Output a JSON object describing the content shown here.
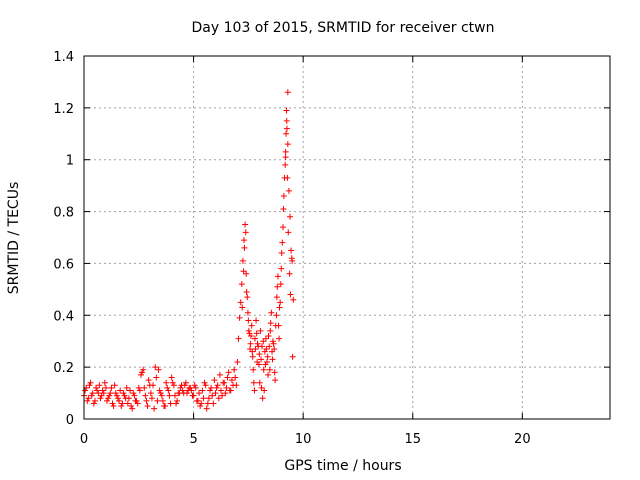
{
  "chart_data": {
    "type": "scatter",
    "title": "Day 103 of 2015, SRMTID for receiver ctwn",
    "xlabel": "GPS time / hours",
    "ylabel": "SRMTID / TECUs",
    "xlim": [
      0,
      24
    ],
    "ylim": [
      0,
      1.4
    ],
    "xticks": [
      0,
      5,
      10,
      15,
      20
    ],
    "xtick_labels": [
      "0",
      "5",
      "10",
      "15",
      "20"
    ],
    "yticks": [
      0,
      0.2,
      0.4,
      0.6,
      0.8,
      1.0,
      1.2,
      1.4
    ],
    "ytick_labels": [
      "0",
      "0.2",
      "0.4",
      "0.6",
      "0.8",
      "1",
      "1.2",
      "1.4"
    ],
    "grid": true,
    "marker": "+",
    "color": "#ff0000",
    "series": [
      {
        "name": "SRMTID",
        "x": [
          0.0,
          0.1,
          0.2,
          0.3,
          0.4,
          0.5,
          0.6,
          0.7,
          0.8,
          0.9,
          1.0,
          1.1,
          1.2,
          1.3,
          1.4,
          1.5,
          1.6,
          1.7,
          1.8,
          1.9,
          2.0,
          2.1,
          2.2,
          2.3,
          2.4,
          2.5,
          2.6,
          2.7,
          2.8,
          2.9,
          3.0,
          3.1,
          3.2,
          3.3,
          3.4,
          3.5,
          3.6,
          3.7,
          3.8,
          3.9,
          4.0,
          4.1,
          4.2,
          4.3,
          4.4,
          4.5,
          4.6,
          4.7,
          4.8,
          4.9,
          5.0,
          5.1,
          5.2,
          5.3,
          5.4,
          5.5,
          5.6,
          5.7,
          5.8,
          5.9,
          6.0,
          6.1,
          6.2,
          6.3,
          6.4,
          6.5,
          6.6,
          6.7,
          6.8,
          6.9,
          7.0,
          7.05,
          7.1,
          7.15,
          7.2,
          7.25,
          7.3,
          7.35,
          7.4,
          7.45,
          7.5,
          7.55,
          7.6,
          7.65,
          7.7,
          7.75,
          7.8,
          7.85,
          7.9,
          7.95,
          8.0,
          8.05,
          8.1,
          8.15,
          8.2,
          8.25,
          8.3,
          8.35,
          8.4,
          8.45,
          8.5,
          8.55,
          8.6,
          8.65,
          8.7,
          8.75,
          8.8,
          8.85,
          8.9,
          8.95,
          9.0,
          9.05,
          9.1,
          9.15,
          9.2,
          9.25,
          9.3,
          9.35,
          9.4,
          9.45,
          9.5,
          9.55,
          0.05,
          0.15,
          0.25,
          0.35,
          0.45,
          0.55,
          0.65,
          0.75,
          0.85,
          0.95,
          1.05,
          1.15,
          1.25,
          1.35,
          1.45,
          1.55,
          1.65,
          1.75,
          1.85,
          1.95,
          2.05,
          2.15,
          2.25,
          2.35,
          2.45,
          2.55,
          2.65,
          2.75,
          2.85,
          2.95,
          3.05,
          3.15,
          3.25,
          3.35,
          3.45,
          3.55,
          3.65,
          3.75,
          3.85,
          3.95,
          4.05,
          4.15,
          4.25,
          4.35,
          4.45,
          4.55,
          4.65,
          4.75,
          4.85,
          4.95,
          5.05,
          5.15,
          5.25,
          5.35,
          5.45,
          5.55,
          5.65,
          5.75,
          5.85,
          5.95,
          6.05,
          6.15,
          6.25,
          6.35,
          6.45,
          6.55,
          6.65,
          6.75,
          6.85,
          6.95,
          7.22,
          7.28,
          7.32,
          7.38,
          7.42,
          7.48,
          7.52,
          7.58,
          7.62,
          7.68,
          7.72,
          7.78,
          7.82,
          7.88,
          7.92,
          7.98,
          8.02,
          8.08,
          8.12,
          8.18,
          8.22,
          8.28,
          8.32,
          8.38,
          8.42,
          8.48,
          8.52,
          8.58,
          8.62,
          8.68,
          8.72,
          8.78,
          8.82,
          8.88,
          8.92,
          8.98,
          9.02,
          9.08,
          9.12,
          9.18,
          9.22,
          9.28,
          9.32,
          9.38,
          9.42,
          9.48,
          9.52,
          9.24,
          9.26,
          9.3,
          9.2
        ],
        "y": [
          0.09,
          0.12,
          0.08,
          0.14,
          0.1,
          0.07,
          0.11,
          0.13,
          0.09,
          0.1,
          0.12,
          0.08,
          0.1,
          0.06,
          0.13,
          0.09,
          0.07,
          0.05,
          0.1,
          0.08,
          0.06,
          0.11,
          0.04,
          0.09,
          0.07,
          0.12,
          0.17,
          0.19,
          0.09,
          0.05,
          0.13,
          0.08,
          0.04,
          0.16,
          0.19,
          0.1,
          0.07,
          0.05,
          0.12,
          0.09,
          0.16,
          0.13,
          0.06,
          0.1,
          0.12,
          0.11,
          0.13,
          0.1,
          0.12,
          0.11,
          0.09,
          0.12,
          0.07,
          0.05,
          0.11,
          0.14,
          0.04,
          0.08,
          0.12,
          0.06,
          0.1,
          0.13,
          0.17,
          0.09,
          0.14,
          0.12,
          0.18,
          0.11,
          0.13,
          0.16,
          0.22,
          0.31,
          0.39,
          0.45,
          0.52,
          0.61,
          0.69,
          0.75,
          0.56,
          0.47,
          0.38,
          0.33,
          0.29,
          0.36,
          0.24,
          0.14,
          0.31,
          0.38,
          0.22,
          0.28,
          0.25,
          0.34,
          0.12,
          0.08,
          0.19,
          0.26,
          0.31,
          0.22,
          0.17,
          0.28,
          0.34,
          0.41,
          0.23,
          0.29,
          0.18,
          0.36,
          0.47,
          0.55,
          0.31,
          0.45,
          0.58,
          0.68,
          0.81,
          0.93,
          1.01,
          1.15,
          1.26,
          0.88,
          0.78,
          0.65,
          0.61,
          0.46,
          0.11,
          0.07,
          0.13,
          0.09,
          0.06,
          0.12,
          0.1,
          0.08,
          0.11,
          0.14,
          0.07,
          0.09,
          0.12,
          0.05,
          0.1,
          0.08,
          0.11,
          0.06,
          0.09,
          0.12,
          0.08,
          0.05,
          0.1,
          0.07,
          0.06,
          0.11,
          0.18,
          0.12,
          0.07,
          0.15,
          0.1,
          0.13,
          0.2,
          0.07,
          0.11,
          0.09,
          0.05,
          0.14,
          0.11,
          0.06,
          0.14,
          0.09,
          0.07,
          0.1,
          0.13,
          0.1,
          0.14,
          0.11,
          0.12,
          0.09,
          0.13,
          0.07,
          0.1,
          0.06,
          0.08,
          0.13,
          0.06,
          0.11,
          0.09,
          0.15,
          0.12,
          0.08,
          0.11,
          0.14,
          0.1,
          0.16,
          0.11,
          0.15,
          0.19,
          0.13,
          0.43,
          0.57,
          0.66,
          0.72,
          0.49,
          0.41,
          0.34,
          0.27,
          0.32,
          0.26,
          0.19,
          0.11,
          0.27,
          0.33,
          0.29,
          0.21,
          0.14,
          0.23,
          0.28,
          0.3,
          0.11,
          0.21,
          0.27,
          0.24,
          0.32,
          0.19,
          0.37,
          0.26,
          0.3,
          0.27,
          0.15,
          0.4,
          0.51,
          0.36,
          0.43,
          0.52,
          0.64,
          0.74,
          0.86,
          0.98,
          1.1,
          0.93,
          0.72,
          0.56,
          0.48,
          0.62,
          0.24,
          1.19,
          1.12,
          1.06,
          1.03
        ]
      }
    ]
  }
}
